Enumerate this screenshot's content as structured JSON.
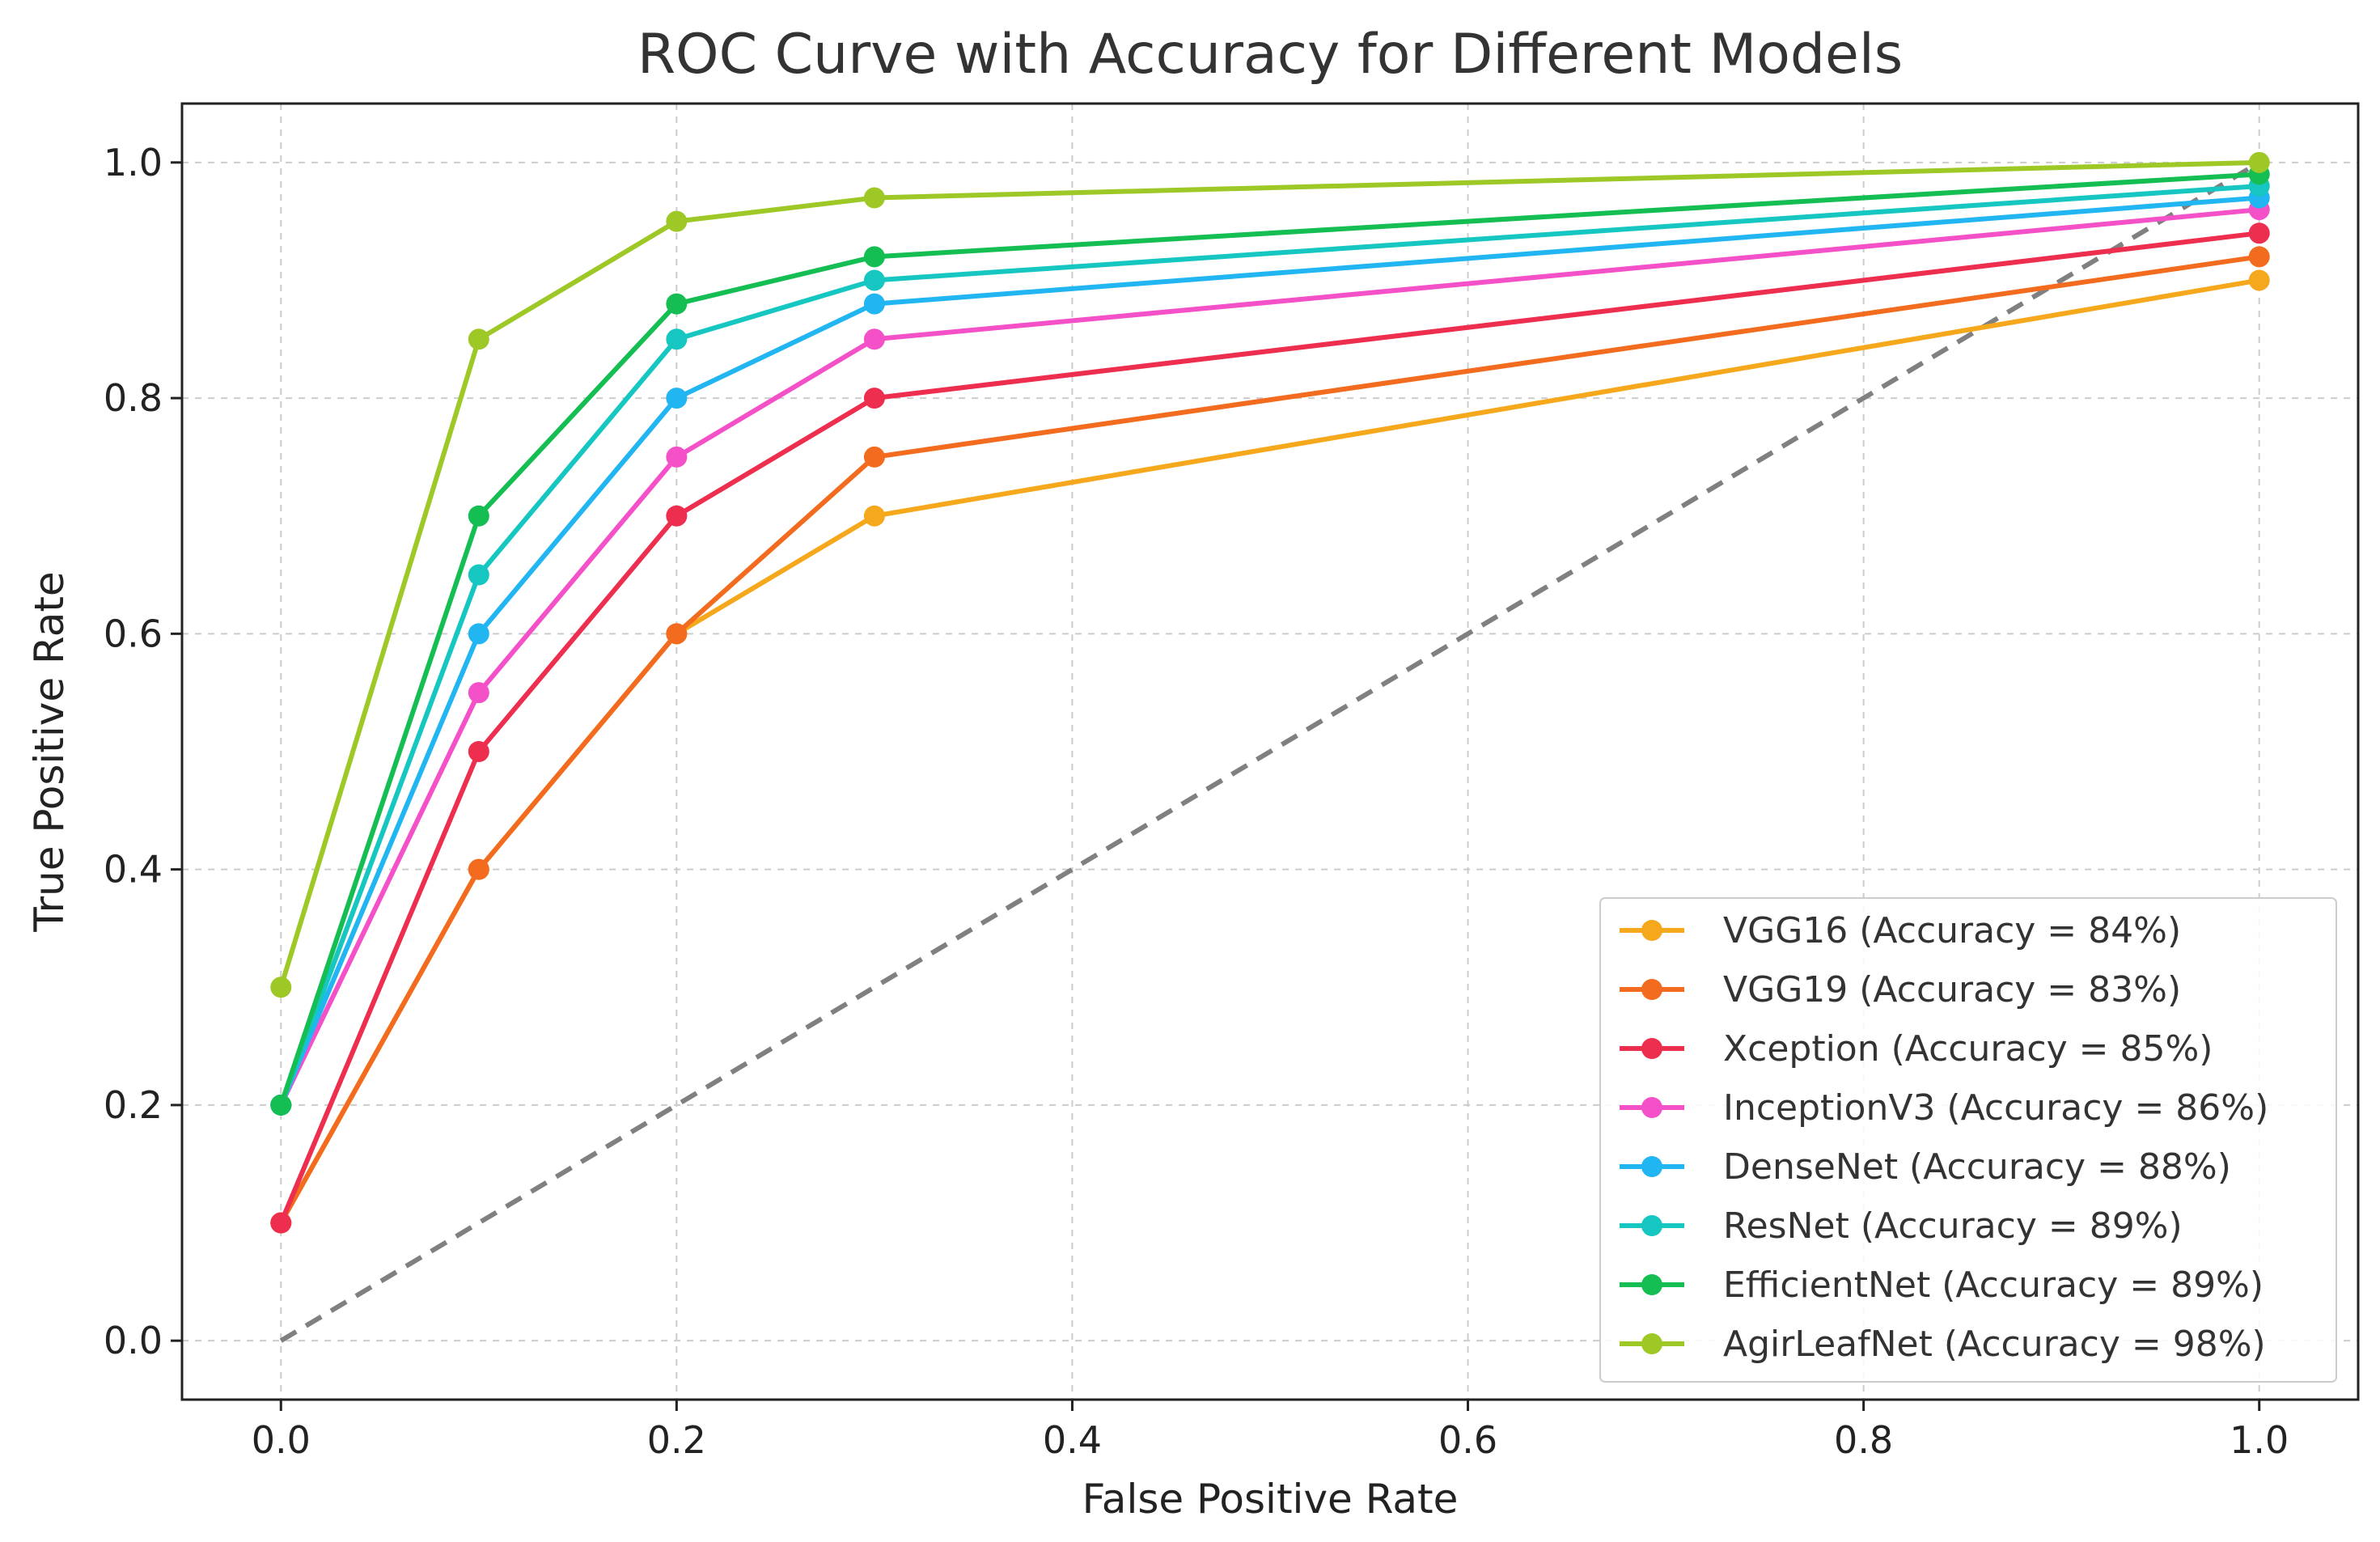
{
  "chart_data": {
    "type": "line",
    "title": "ROC Curve with Accuracy for Different Models",
    "xlabel": "False Positive Rate",
    "ylabel": "True Positive Rate",
    "xlim": [
      -0.05,
      1.05
    ],
    "ylim": [
      -0.05,
      1.05
    ],
    "xticks": [
      0.0,
      0.2,
      0.4,
      0.6,
      0.8,
      1.0
    ],
    "yticks": [
      0.0,
      0.2,
      0.4,
      0.6,
      0.8,
      1.0
    ],
    "xtick_labels": [
      "0.0",
      "0.2",
      "0.4",
      "0.6",
      "0.8",
      "1.0"
    ],
    "ytick_labels": [
      "0.0",
      "0.2",
      "0.4",
      "0.6",
      "0.8",
      "1.0"
    ],
    "grid": true,
    "legend_position": "lower-right",
    "x": [
      0.0,
      0.1,
      0.2,
      0.3,
      1.0
    ],
    "diagonal": {
      "x": [
        0,
        1
      ],
      "y": [
        0,
        1
      ],
      "color": "#808080",
      "style": "dashed"
    },
    "series": [
      {
        "name": "VGG16 (Accuracy = 84%)",
        "color": "#F6A81C",
        "values": [
          0.1,
          0.4,
          0.6,
          0.7,
          0.9
        ]
      },
      {
        "name": "VGG19 (Accuracy = 83%)",
        "color": "#F26B1E",
        "values": [
          0.1,
          0.4,
          0.6,
          0.75,
          0.92
        ]
      },
      {
        "name": "Xception (Accuracy = 85%)",
        "color": "#EE2E4E",
        "values": [
          0.1,
          0.5,
          0.7,
          0.8,
          0.94
        ]
      },
      {
        "name": "InceptionV3 (Accuracy = 86%)",
        "color": "#F451C8",
        "values": [
          0.2,
          0.55,
          0.75,
          0.85,
          0.96
        ]
      },
      {
        "name": "DenseNet (Accuracy = 88%)",
        "color": "#21B5F2",
        "values": [
          0.2,
          0.6,
          0.8,
          0.88,
          0.97
        ]
      },
      {
        "name": "ResNet (Accuracy = 89%)",
        "color": "#16C6C0",
        "values": [
          0.2,
          0.65,
          0.85,
          0.9,
          0.98
        ]
      },
      {
        "name": "EfficientNet (Accuracy = 89%)",
        "color": "#14BE52",
        "values": [
          0.2,
          0.7,
          0.88,
          0.92,
          0.99
        ]
      },
      {
        "name": "AgirLeafNet (Accuracy = 98%)",
        "color": "#9DC826",
        "values": [
          0.3,
          0.85,
          0.95,
          0.97,
          1.0
        ]
      }
    ]
  }
}
